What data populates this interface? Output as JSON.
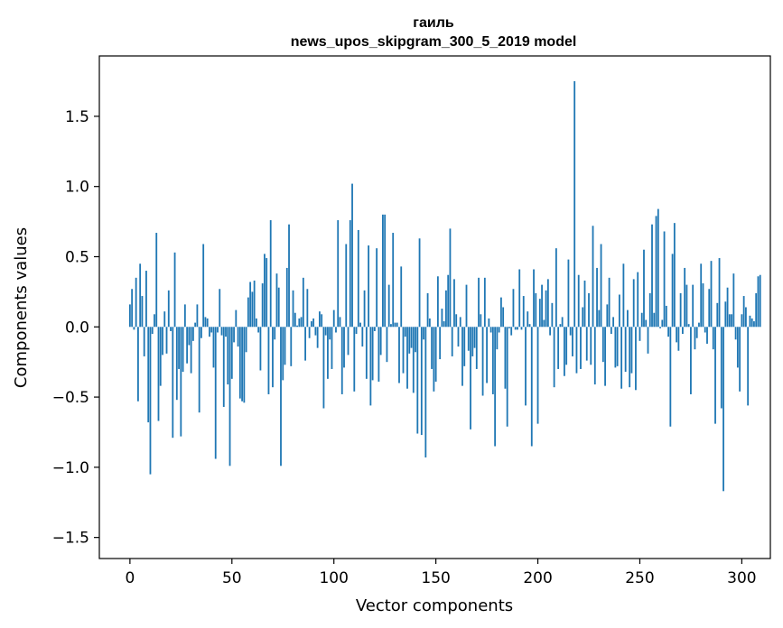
{
  "chart_data": {
    "type": "bar",
    "title": "гаиль",
    "subtitle": "news_upos_skipgram_300_5_2019 model",
    "xlabel": "Vector components",
    "ylabel": "Components values",
    "xlim": [
      -15,
      314
    ],
    "ylim": [
      -1.65,
      1.93
    ],
    "xticks": [
      0,
      50,
      100,
      150,
      200,
      250,
      300
    ],
    "yticks": [
      -1.5,
      -1.0,
      -0.5,
      0.0,
      0.5,
      1.0,
      1.5
    ],
    "ytick_labels": [
      "−1.5",
      "−1.0",
      "−0.5",
      "0.0",
      "0.5",
      "1.0",
      "1.5"
    ],
    "grid": false,
    "bar_color": "#1f77b4",
    "values": [
      0.16,
      0.27,
      -0.02,
      0.35,
      -0.53,
      0.45,
      0.22,
      -0.21,
      0.4,
      -0.68,
      -1.05,
      -0.05,
      0.09,
      0.67,
      -0.67,
      -0.42,
      -0.2,
      0.11,
      -0.19,
      0.26,
      -0.03,
      -0.79,
      0.53,
      -0.52,
      -0.3,
      -0.78,
      -0.32,
      0.16,
      -0.26,
      -0.13,
      -0.33,
      -0.1,
      0.03,
      0.16,
      -0.61,
      -0.08,
      0.59,
      0.07,
      0.06,
      -0.07,
      -0.04,
      -0.29,
      -0.94,
      -0.04,
      0.27,
      -0.06,
      -0.57,
      -0.07,
      -0.41,
      -0.99,
      -0.37,
      -0.11,
      0.12,
      -0.14,
      -0.51,
      -0.53,
      -0.54,
      -0.18,
      0.21,
      0.32,
      0.25,
      0.33,
      0.06,
      -0.04,
      -0.31,
      0.31,
      0.52,
      0.49,
      -0.48,
      0.76,
      -0.43,
      -0.09,
      0.38,
      0.28,
      -0.99,
      -0.38,
      -0.27,
      0.42,
      0.73,
      -0.28,
      0.26,
      0.1,
      0.01,
      0.06,
      0.07,
      0.35,
      -0.24,
      0.27,
      -0.08,
      0.04,
      0.06,
      -0.06,
      -0.15,
      0.11,
      0.09,
      -0.58,
      -0.06,
      -0.37,
      -0.09,
      -0.3,
      0.12,
      -0.04,
      0.76,
      0.07,
      -0.48,
      -0.29,
      0.59,
      -0.2,
      0.76,
      1.02,
      -0.46,
      -0.05,
      0.69,
      0.03,
      -0.14,
      0.26,
      -0.37,
      0.58,
      -0.56,
      -0.38,
      -0.03,
      0.56,
      -0.39,
      -0.2,
      0.8,
      0.8,
      -0.25,
      0.3,
      0.02,
      0.67,
      0.03,
      0.03,
      -0.4,
      0.43,
      -0.33,
      -0.07,
      -0.44,
      -0.19,
      -0.15,
      -0.47,
      -0.18,
      -0.76,
      0.63,
      -0.77,
      -0.09,
      -0.93,
      0.24,
      0.06,
      -0.3,
      -0.46,
      -0.39,
      0.36,
      -0.23,
      0.13,
      0.04,
      0.26,
      0.37,
      0.7,
      -0.21,
      0.34,
      0.09,
      -0.14,
      0.07,
      -0.42,
      -0.28,
      0.3,
      -0.17,
      -0.73,
      -0.21,
      -0.15,
      -0.3,
      0.35,
      0.09,
      -0.49,
      0.35,
      -0.4,
      0.06,
      -0.04,
      -0.48,
      -0.85,
      -0.16,
      -0.04,
      0.21,
      0.14,
      -0.44,
      -0.71,
      -0.01,
      -0.06,
      0.27,
      -0.02,
      -0.02,
      0.41,
      -0.02,
      0.22,
      -0.56,
      0.11,
      0.02,
      -0.85,
      0.41,
      0.24,
      -0.69,
      0.2,
      0.3,
      0.05,
      0.26,
      0.34,
      -0.06,
      0.17,
      -0.43,
      0.56,
      -0.3,
      0.02,
      0.07,
      -0.35,
      -0.27,
      0.48,
      -0.06,
      -0.21,
      1.75,
      -0.33,
      0.37,
      -0.3,
      0.14,
      0.33,
      -0.24,
      0.24,
      -0.27,
      0.72,
      -0.41,
      0.42,
      0.12,
      0.59,
      -0.25,
      -0.42,
      0.16,
      0.35,
      -0.05,
      0.07,
      -0.29,
      -0.28,
      0.23,
      -0.44,
      0.45,
      -0.32,
      0.12,
      -0.43,
      -0.33,
      0.34,
      -0.45,
      0.39,
      -0.1,
      0.1,
      0.55,
      0.05,
      -0.19,
      0.24,
      0.73,
      0.1,
      0.79,
      0.84,
      -0.01,
      0.05,
      0.68,
      0.15,
      -0.07,
      -0.71,
      0.52,
      0.74,
      -0.11,
      -0.17,
      0.24,
      -0.05,
      0.42,
      0.3,
      0.02,
      -0.48,
      0.3,
      -0.16,
      -0.08,
      0.03,
      0.45,
      0.31,
      -0.04,
      -0.12,
      0.27,
      0.47,
      -0.16,
      -0.69,
      0.17,
      0.49,
      -0.58,
      -1.17,
      0.18,
      0.28,
      0.09,
      0.09,
      0.38,
      -0.09,
      -0.29,
      -0.46,
      0.09,
      0.22,
      0.14,
      -0.56,
      0.08,
      0.06,
      0.04,
      0.24,
      0.36,
      0.37
    ]
  }
}
